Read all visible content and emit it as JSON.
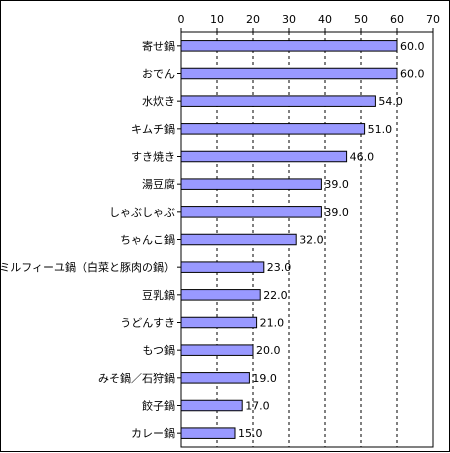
{
  "chart_data": {
    "type": "bar",
    "orientation": "horizontal",
    "title": "",
    "xlabel": "",
    "ylabel": "",
    "xlim": [
      0,
      70
    ],
    "ticks": [
      0,
      10,
      20,
      30,
      40,
      50,
      60,
      70
    ],
    "tick_labels": [
      "0",
      "10",
      "20",
      "30",
      "40",
      "50",
      "60",
      "70"
    ],
    "axis_position": "top",
    "grid": true,
    "grid_style": "dashed",
    "legend": "none",
    "bar_color": "#9999ff",
    "bar_border_color": "#000000",
    "categories": [
      "寄せ鍋",
      "おでん",
      "水炊き",
      "キムチ鍋",
      "すき焼き",
      "湯豆腐",
      "しゃぶしゃぶ",
      "ちゃんこ鍋",
      "ミルフィーユ鍋（白菜と豚肉の鍋）",
      "豆乳鍋",
      "うどんすき",
      "もつ鍋",
      "みそ鍋／石狩鍋",
      "餃子鍋",
      "カレー鍋"
    ],
    "values": [
      60.0,
      60.0,
      54.0,
      51.0,
      46.0,
      39.0,
      39.0,
      32.0,
      23.0,
      22.0,
      21.0,
      20.0,
      19.0,
      17.0,
      15.0
    ],
    "value_labels": [
      "60.0",
      "60.0",
      "54.0",
      "51.0",
      "46.0",
      "39.0",
      "39.0",
      "32.0",
      "23.0",
      "22.0",
      "21.0",
      "20.0",
      "19.0",
      "17.0",
      "15.0"
    ]
  }
}
